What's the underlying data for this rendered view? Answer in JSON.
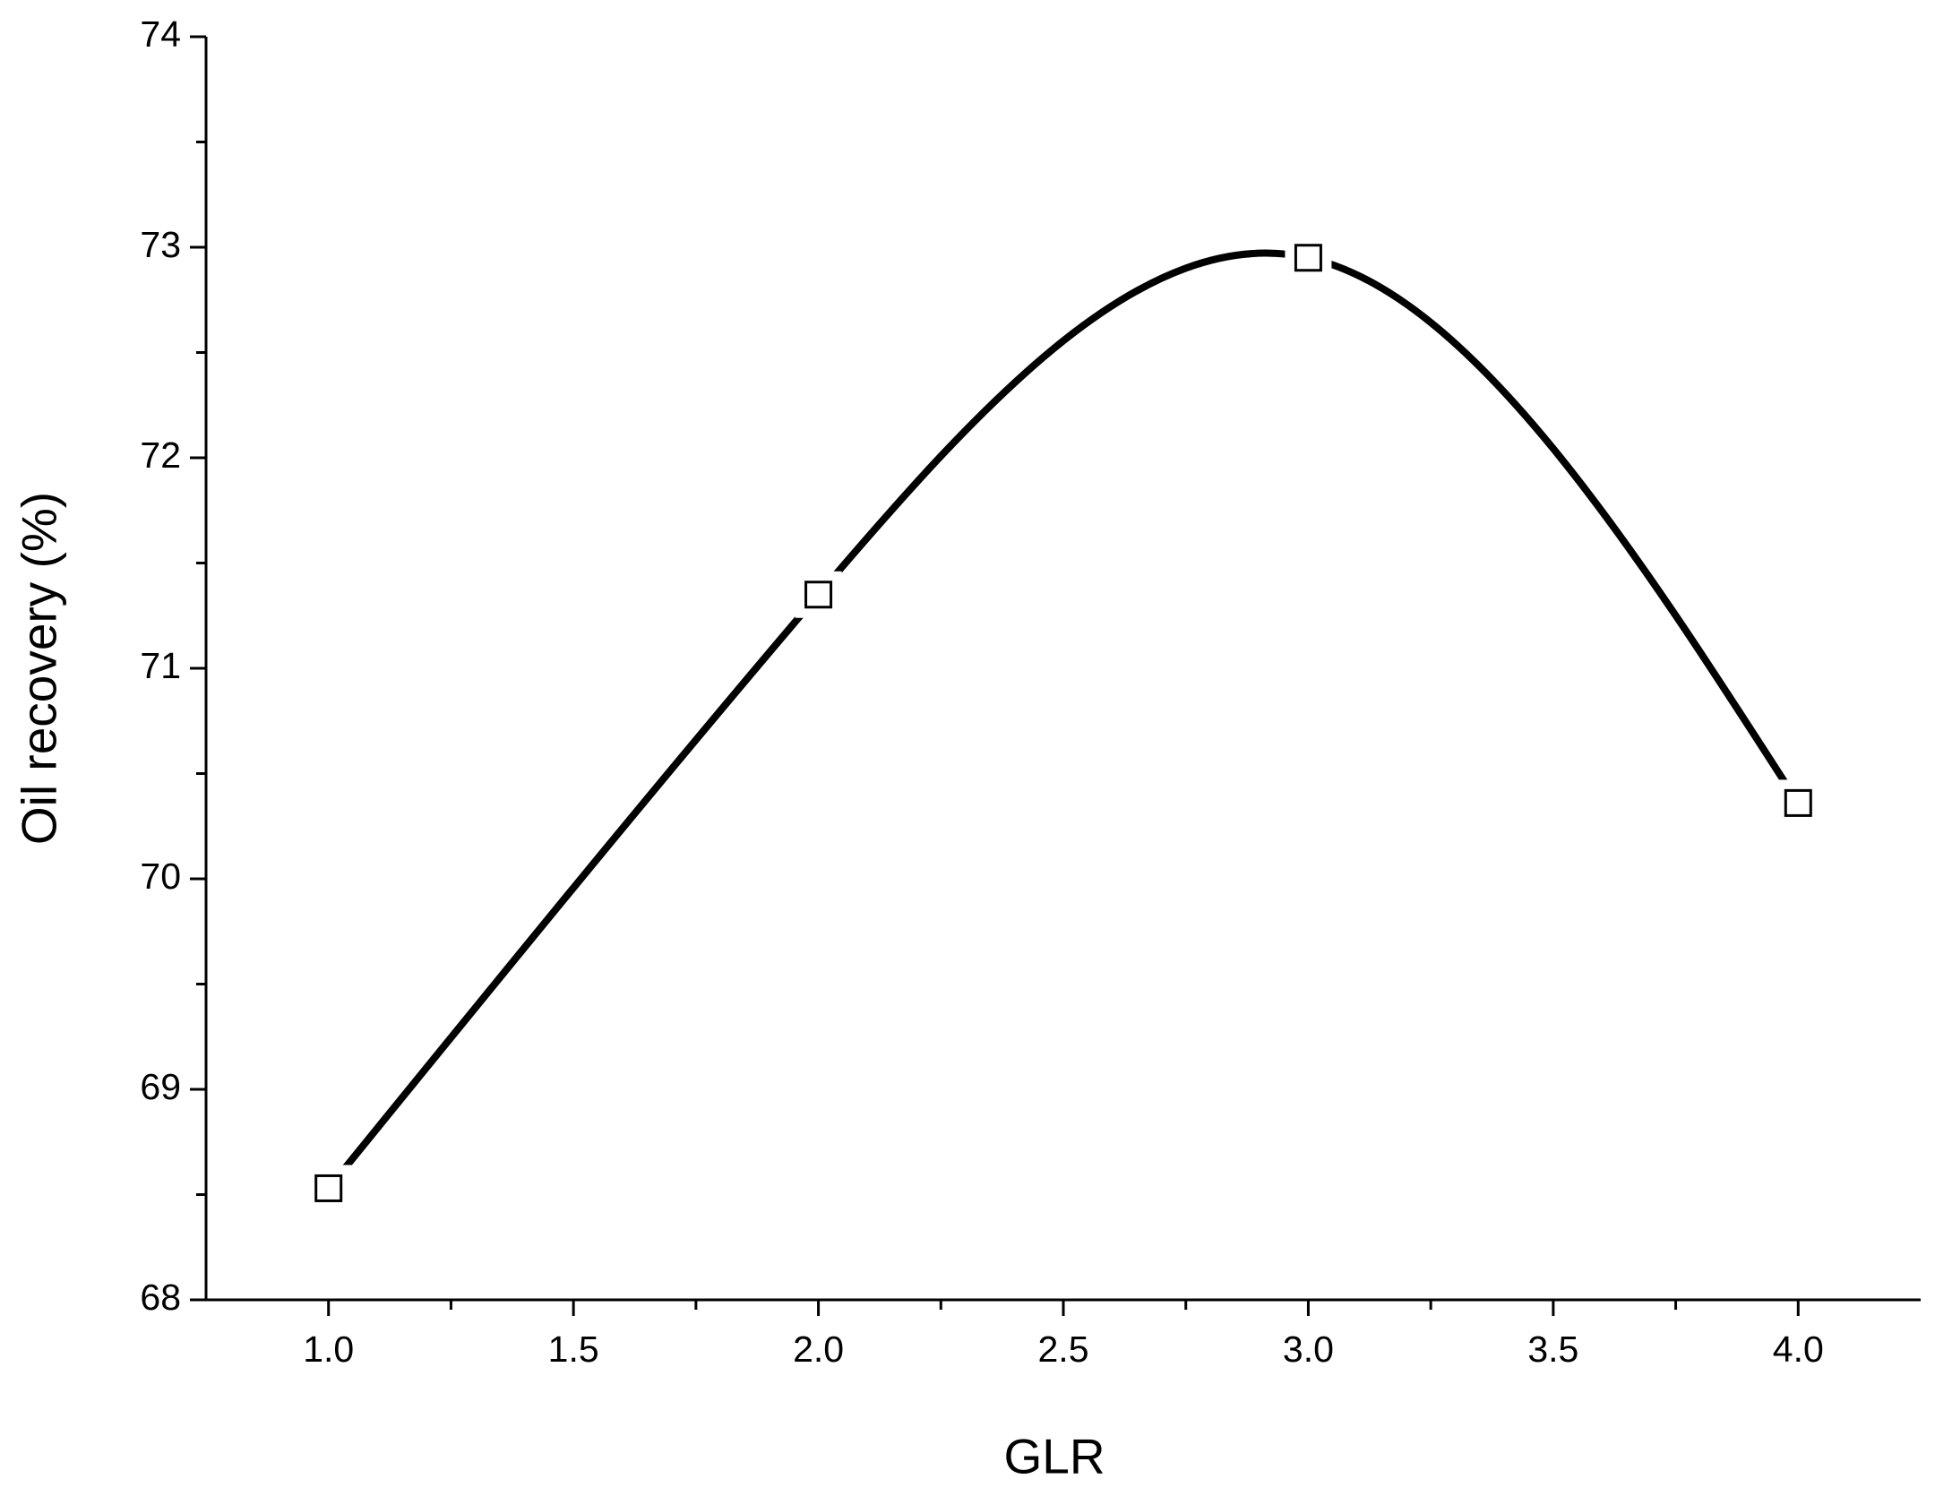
{
  "chart_data": {
    "type": "line",
    "x_label": "GLR",
    "y_label": "Oil recovery (%)",
    "x": [
      1,
      2,
      3,
      4
    ],
    "values": [
      68.53,
      71.35,
      72.95,
      70.36
    ],
    "color": "#000000",
    "marker": "square",
    "xlim": [
      0.75,
      4.25
    ],
    "xticks": [
      {
        "value": 1,
        "label": "1.0"
      },
      {
        "value": 1.5,
        "label": "1.5"
      },
      {
        "value": 2,
        "label": "2.0"
      },
      {
        "value": 2.5,
        "label": "2.5"
      },
      {
        "value": 3,
        "label": "3.0"
      },
      {
        "value": 3.5,
        "label": "3.5"
      },
      {
        "value": 4,
        "label": "4.0"
      }
    ],
    "ylim": [
      68,
      74
    ],
    "yticks": [
      68,
      69,
      70,
      71,
      72,
      73,
      74
    ],
    "grid": false
  }
}
